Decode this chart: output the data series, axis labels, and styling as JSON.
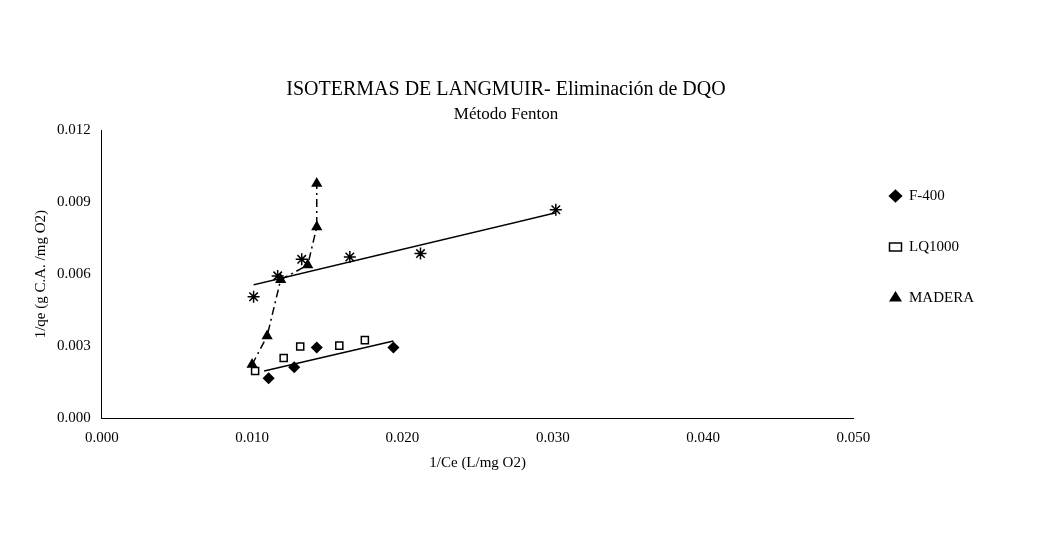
{
  "chart_data": {
    "type": "scatter",
    "title": "ISOTERMAS DE LANGMUIR- Eliminación de DQO",
    "subtitle": "Método Fenton",
    "xlabel": "1/Ce (L/mg O2)",
    "ylabel": "1/qe (g C.A. /mg O2)",
    "xlim": [
      0,
      0.05
    ],
    "xticks": [
      {
        "value": 0,
        "label": "0.000"
      },
      {
        "value": 0.01,
        "label": "0.010"
      },
      {
        "value": 0.02,
        "label": "0.020"
      },
      {
        "value": 0.03,
        "label": "0.030"
      },
      {
        "value": 0.04,
        "label": "0.040"
      },
      {
        "value": 0.05,
        "label": "0.050"
      }
    ],
    "ylim": [
      0,
      0.012
    ],
    "yticks": [
      {
        "value": 0,
        "label": "0.000"
      },
      {
        "value": 0.003,
        "label": "0.003"
      },
      {
        "value": 0.006,
        "label": "0.006"
      },
      {
        "value": 0.009,
        "label": "0.009"
      },
      {
        "value": 0.012,
        "label": "0.012"
      }
    ],
    "grid": false,
    "legend": "right",
    "series": [
      {
        "name": "F-400",
        "type": "scatter",
        "marker": "diamond",
        "color": "#000000",
        "x": [
          0.0111,
          0.0128,
          0.0143,
          0.0194
        ],
        "values": [
          0.00166,
          0.00212,
          0.00294,
          0.00294
        ]
      },
      {
        "name": "LQ1000",
        "type": "scatter",
        "marker": "square",
        "color": "#000000",
        "x": [
          0.0102,
          0.0121,
          0.0132,
          0.0158,
          0.0175
        ],
        "values": [
          0.00196,
          0.0025,
          0.00298,
          0.00302,
          0.00325
        ]
      },
      {
        "name": "MADERA",
        "type": "scatter",
        "marker": "triangle",
        "color": "#000000",
        "x": [
          0.01,
          0.011,
          0.0119,
          0.0137,
          0.0143,
          0.0143
        ],
        "values": [
          0.00223,
          0.00342,
          0.00577,
          0.00638,
          0.00797,
          0.00978
        ]
      },
      {
        "type": "scatter",
        "marker": "cross",
        "color": "#000000",
        "x": [
          0.0101,
          0.0117,
          0.0133,
          0.0165,
          0.0212,
          0.0302
        ],
        "values": [
          0.00506,
          0.00593,
          0.00662,
          0.00672,
          0.00686,
          0.00869
        ]
      },
      {
        "type": "line",
        "marker": "none",
        "line_style": "solid",
        "color": "#000000",
        "x": [
          0.0108,
          0.0194
        ],
        "values": [
          0.00196,
          0.00321
        ]
      },
      {
        "type": "line",
        "marker": "none",
        "line_style": "solid",
        "color": "#000000",
        "x": [
          0.0101,
          0.0302
        ],
        "values": [
          0.00556,
          0.00856
        ]
      },
      {
        "type": "line",
        "marker": "none",
        "line_style": "dashed",
        "color": "#000000",
        "x": [
          0.01,
          0.011,
          0.0119,
          0.0137,
          0.0143,
          0.0143
        ],
        "values": [
          0.00223,
          0.00342,
          0.00577,
          0.00638,
          0.00797,
          0.00978
        ]
      }
    ]
  }
}
